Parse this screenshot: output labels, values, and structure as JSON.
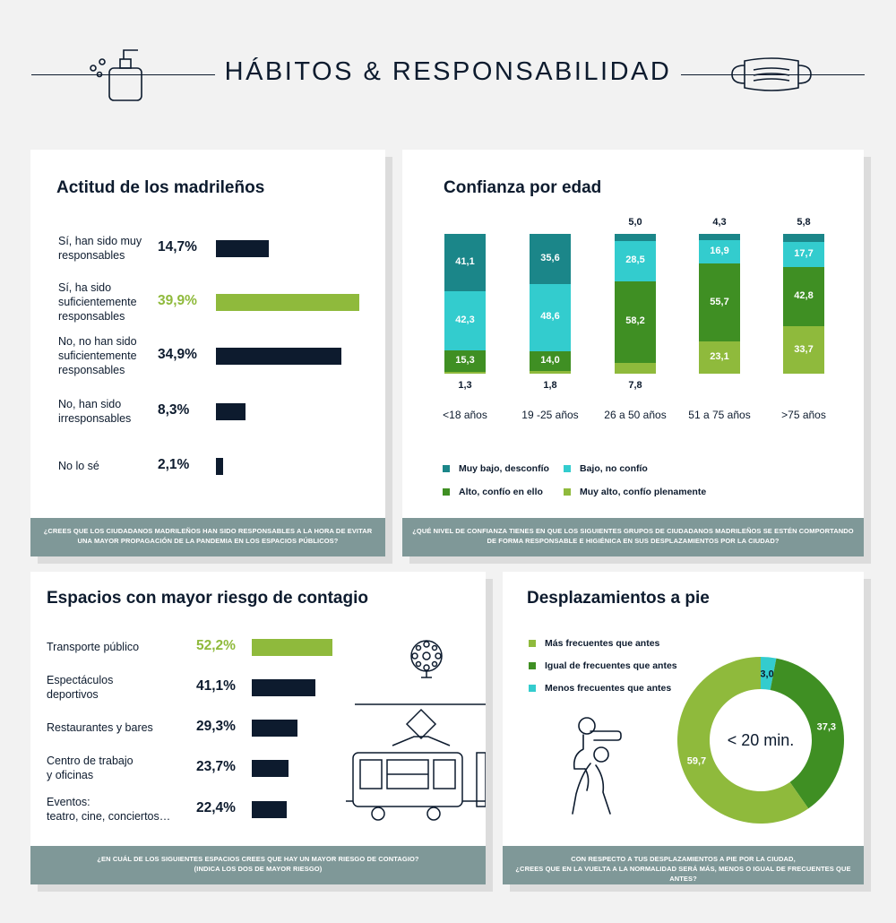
{
  "header": {
    "title": "HÁBITOS & RESPONSABILIDAD"
  },
  "colors": {
    "navy": "#0d1b2e",
    "light_green": "#8fba3c",
    "dark_green": "#3f8f23",
    "dark_teal": "#1b8689",
    "light_cyan": "#33ccce",
    "footer_bg": "#7f9898"
  },
  "panel1": {
    "title": "Actitud de los madrileños",
    "footer": [
      "¿CREES QUE LOS CIUDADANOS MADRILEÑOS HAN SIDO RESPONSABLES A LA HORA DE EVITAR",
      "UNA MAYOR PROPAGACIÓN DE LA PANDEMIA EN LOS ESPACIOS PÚBLICOS?"
    ],
    "chart_data": {
      "type": "bar",
      "orientation": "horizontal",
      "categories": [
        "Sí, han sido muy responsables",
        "Sí, ha sido suficientemente responsables",
        "No, no han sido suficientemente responsables",
        "No, han sido irresponsables",
        "No lo sé"
      ],
      "category_lines": [
        [
          "Sí, han sido muy",
          "responsables"
        ],
        [
          "Sí, ha sido",
          "suficientemente",
          "responsables"
        ],
        [
          "No, no han sido",
          "suficientemente",
          "responsables"
        ],
        [
          "No, han sido",
          "irresponsables"
        ],
        [
          "No lo sé"
        ]
      ],
      "values": [
        14.7,
        39.9,
        34.9,
        8.3,
        2.1
      ],
      "value_labels": [
        "14,7%",
        "39,9%",
        "34,9%",
        "8,3%",
        "2,1%"
      ],
      "highlight_index": 1
    }
  },
  "panel2": {
    "title": "Confianza por edad",
    "footer": [
      "¿QUÉ NIVEL DE CONFIANZA TIENES EN QUE LOS SIGUIENTES GRUPOS DE CIUDADANOS MADRILEÑOS SE ESTÉN COMPORTANDO",
      "DE FORMA RESPONSABLE E HIGIÉNICA EN SUS DESPLAZAMIENTOS POR LA CIUDAD?"
    ],
    "chart_data": {
      "type": "bar",
      "stacked": true,
      "categories": [
        "<18 años",
        "19 -25 años",
        "26 a 50 años",
        "51 a 75 años",
        ">75 años"
      ],
      "series": [
        {
          "name": "Muy bajo, desconfío",
          "color": "#1b8689",
          "values": [
            41.1,
            35.6,
            5.0,
            4.3,
            5.8
          ],
          "labels": [
            "41,1",
            "35,6",
            "5,0",
            "4,3",
            "5,8"
          ]
        },
        {
          "name": "Bajo, no confío",
          "color": "#33ccce",
          "values": [
            42.3,
            48.6,
            28.5,
            16.9,
            17.7
          ],
          "labels": [
            "42,3",
            "48,6",
            "28,5",
            "16,9",
            "17,7"
          ]
        },
        {
          "name": "Alto, confío en ello",
          "color": "#3f8f23",
          "values": [
            15.3,
            14.0,
            58.2,
            55.7,
            42.8
          ],
          "labels": [
            "15,3",
            "14,0",
            "58,2",
            "55,7",
            "42,8"
          ]
        },
        {
          "name": "Muy alto, confío plenamente",
          "color": "#8fba3c",
          "values": [
            1.3,
            1.8,
            7.8,
            23.1,
            33.7
          ],
          "labels": [
            "1,3",
            "1,8",
            "7,8",
            "23,1",
            "33,7"
          ]
        }
      ]
    }
  },
  "panel3": {
    "title": "Espacios con mayor riesgo de contagio",
    "footer": [
      "¿EN CUÁL DE LOS SIGUIENTES ESPACIOS CREES QUE HAY UN MAYOR RIESGO DE CONTAGIO?",
      "(INDICA LOS DOS DE MAYOR RIESGO)"
    ],
    "chart_data": {
      "type": "bar",
      "orientation": "horizontal",
      "categories": [
        "Transporte público",
        "Espectáculos deportivos",
        "Restaurantes y bares",
        "Centro de trabajo y oficinas",
        "Eventos: teatro, cine, conciertos…"
      ],
      "category_lines": [
        [
          "Transporte público"
        ],
        [
          "Espectáculos",
          "deportivos"
        ],
        [
          "Restaurantes y bares"
        ],
        [
          "Centro de trabajo",
          "y oficinas"
        ],
        [
          "Eventos:",
          "teatro, cine, conciertos…"
        ]
      ],
      "values": [
        52.2,
        41.1,
        29.3,
        23.7,
        22.4
      ],
      "value_labels": [
        "52,2%",
        "41,1%",
        "29,3%",
        "23,7%",
        "22,4%"
      ],
      "highlight_index": 0
    }
  },
  "panel4": {
    "title": "Desplazamientos a pie",
    "center_label": "< 20 min.",
    "footer": [
      "CON RESPECTO A TUS DESPLAZAMIENTOS A PIE POR LA CIUDAD,",
      "¿CREES QUE EN LA VUELTA A LA NORMALIDAD SERÁ MÁS, MENOS O IGUAL DE FRECUENTES QUE ANTES?"
    ],
    "chart_data": {
      "type": "pie",
      "donut": true,
      "categories": [
        "Más frecuentes que antes",
        "Igual de frecuentes que antes",
        "Menos frecuentes que antes"
      ],
      "values": [
        59.7,
        37.3,
        3.0
      ],
      "value_labels": [
        "59,7",
        "37,3",
        "3,0"
      ],
      "colors": [
        "#8fba3c",
        "#3f8f23",
        "#33ccce"
      ]
    }
  }
}
